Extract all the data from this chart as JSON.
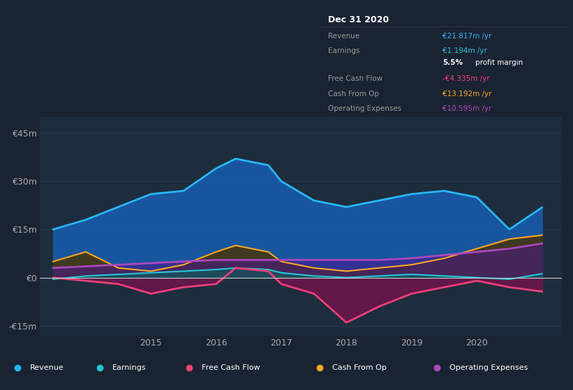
{
  "bg_color": "#1a2332",
  "plot_bg_color": "#1e2d3d",
  "grid_color": "#2a3d52",
  "zero_line_color": "#cccccc",
  "ylim": [
    -18000000,
    50000000
  ],
  "yticks": [
    -15000000,
    0,
    15000000,
    30000000,
    45000000
  ],
  "ytick_labels": [
    "-€15m",
    "€0",
    "€15m",
    "€30m",
    "€45m"
  ],
  "years": [
    2013.5,
    2014.0,
    2014.5,
    2015.0,
    2015.5,
    2016.0,
    2016.3,
    2016.8,
    2017.0,
    2017.5,
    2018.0,
    2018.5,
    2019.0,
    2019.5,
    2020.0,
    2020.5,
    2021.0
  ],
  "revenue": [
    15000000,
    18000000,
    22000000,
    26000000,
    27000000,
    34000000,
    37000000,
    35000000,
    30000000,
    24000000,
    22000000,
    24000000,
    26000000,
    27000000,
    25000000,
    15000000,
    21817000
  ],
  "earnings": [
    -500000,
    500000,
    1000000,
    1500000,
    2000000,
    2500000,
    3000000,
    2500000,
    1500000,
    500000,
    0,
    500000,
    1000000,
    500000,
    0,
    -500000,
    1194000
  ],
  "free_cash_flow": [
    0,
    -1000000,
    -2000000,
    -5000000,
    -3000000,
    -2000000,
    3000000,
    2000000,
    -2000000,
    -5000000,
    -14000000,
    -9000000,
    -5000000,
    -3000000,
    -1000000,
    -3000000,
    -4335000
  ],
  "cash_from_op": [
    5000000,
    8000000,
    3000000,
    2000000,
    4000000,
    8000000,
    10000000,
    8000000,
    5000000,
    3000000,
    2000000,
    3000000,
    4000000,
    6000000,
    9000000,
    12000000,
    13192000
  ],
  "operating_expenses": [
    3000000,
    3500000,
    4000000,
    4500000,
    5000000,
    5500000,
    5500000,
    5500000,
    5500000,
    5500000,
    5500000,
    5500000,
    6000000,
    7000000,
    8000000,
    9000000,
    10595000
  ],
  "revenue_color": "#29b6f6",
  "earnings_color": "#26c6da",
  "fcf_color": "#ec407a",
  "cashop_color": "#ffa726",
  "opex_color": "#ab47bc",
  "revenue_fill": "#1565c0",
  "earnings_fill": "#00695c",
  "fcf_fill": "#880e4f",
  "cashop_fill": "#4a3300",
  "opex_fill": "#4a148c",
  "legend_items": [
    "Revenue",
    "Earnings",
    "Free Cash Flow",
    "Cash From Op",
    "Operating Expenses"
  ],
  "legend_colors": [
    "#29b6f6",
    "#26c6da",
    "#ec407a",
    "#ffa726",
    "#ab47bc"
  ],
  "info_box": {
    "title": "Dec 31 2020",
    "rows": [
      {
        "label": "Revenue",
        "value": "€21.817m /yr",
        "value_color": "#29b6f6"
      },
      {
        "label": "Earnings",
        "value": "€1.194m /yr",
        "value_color": "#26c6da"
      },
      {
        "label": "",
        "value": "5.5% profit margin",
        "value_color": "#ffffff",
        "bold_part": "5.5%"
      },
      {
        "label": "Free Cash Flow",
        "value": "-€4.335m /yr",
        "value_color": "#ec407a"
      },
      {
        "label": "Cash From Op",
        "value": "€13.192m /yr",
        "value_color": "#ffa726"
      },
      {
        "label": "Operating Expenses",
        "value": "€10.595m /yr",
        "value_color": "#ab47bc"
      }
    ]
  }
}
